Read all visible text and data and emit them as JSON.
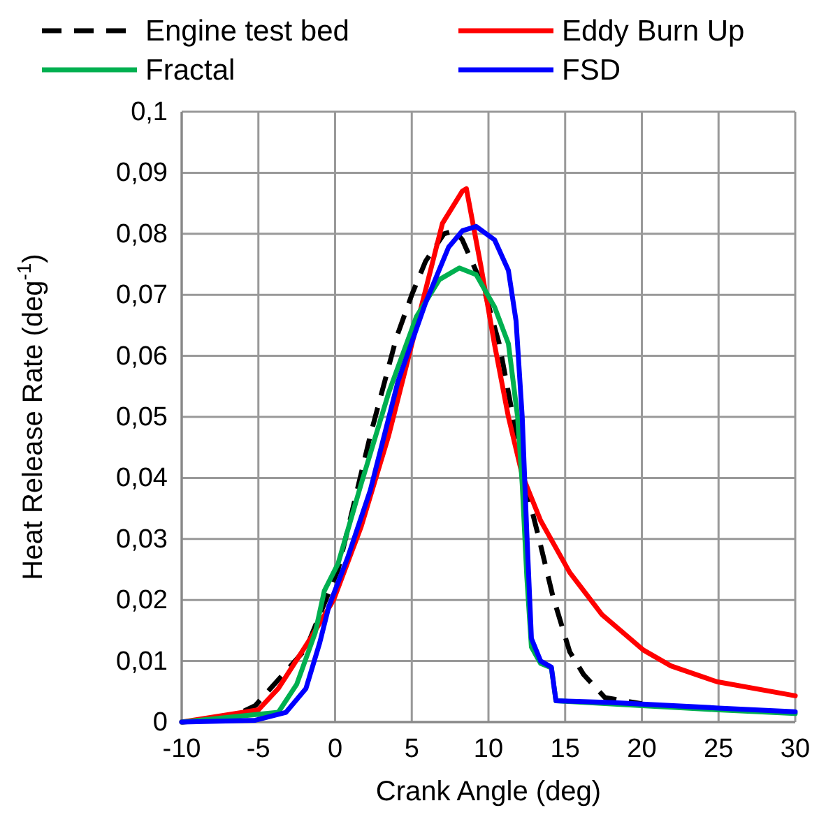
{
  "chart_data": {
    "type": "line",
    "xlabel": "Crank Angle (deg)",
    "ylabel": "Heat Release Rate (deg$^{-1}$)",
    "xlim": [
      -10,
      30
    ],
    "xticks": [
      -10,
      -5,
      0,
      5,
      10,
      15,
      20,
      25,
      30
    ],
    "ylim": [
      0,
      0.1
    ],
    "yticks": [
      {
        "value": 0,
        "label": "0"
      },
      {
        "value": 0.01,
        "label": "0,01"
      },
      {
        "value": 0.02,
        "label": "0,02"
      },
      {
        "value": 0.03,
        "label": "0,03"
      },
      {
        "value": 0.04,
        "label": "0,04"
      },
      {
        "value": 0.05,
        "label": "0,05"
      },
      {
        "value": 0.06,
        "label": "0,06"
      },
      {
        "value": 0.07,
        "label": "0,07"
      },
      {
        "value": 0.08,
        "label": "0,08"
      },
      {
        "value": 0.09,
        "label": "0,09"
      },
      {
        "value": 0.1,
        "label": "0,1"
      }
    ],
    "grid": true,
    "legend": "top",
    "marker": "none",
    "series": [
      {
        "name": "Engine test bed",
        "color": "#000000",
        "line_style": "dashed",
        "x": [
          -10,
          -7,
          -5.2,
          -1.9,
          0.2,
          2.3,
          4.0,
          5.0,
          5.9,
          7.1,
          7.8,
          8.3,
          9.7,
          10.7,
          11.6,
          12.4,
          13.3,
          14.2,
          15.3,
          16.2,
          17.6,
          20
        ],
        "values": [
          0,
          0.0005,
          0.0027,
          0.012,
          0.025,
          0.047,
          0.063,
          0.07,
          0.0755,
          0.08,
          0.0805,
          0.079,
          0.071,
          0.062,
          0.05,
          0.039,
          0.03,
          0.0206,
          0.0115,
          0.0078,
          0.004,
          0.003
        ]
      },
      {
        "name": "Eddy Burn Up",
        "color": "#ff0000",
        "line_style": "solid",
        "x": [
          -10,
          -5,
          -3.7,
          -1.6,
          -0.1,
          1.7,
          3.5,
          7.0,
          8.3,
          8.56,
          9.5,
          10.4,
          11.3,
          12.2,
          13.4,
          15.3,
          17.4,
          20.1,
          21.9,
          24.9,
          30
        ],
        "values": [
          0,
          0.002,
          0.0055,
          0.0137,
          0.02,
          0.032,
          0.047,
          0.0817,
          0.087,
          0.0874,
          0.0748,
          0.0618,
          0.05,
          0.0405,
          0.033,
          0.0245,
          0.0176,
          0.0118,
          0.0092,
          0.0066,
          0.0043
        ]
      },
      {
        "name": "Fractal",
        "color": "#00b050",
        "line_style": "solid",
        "x": [
          -10,
          -3.7,
          -2.5,
          -1.3,
          -0.7,
          0.2,
          1.7,
          3.5,
          5.3,
          6.8,
          8.1,
          9.2,
          10.4,
          11.3,
          11.9,
          12.2,
          12.5,
          12.8,
          13.4,
          14.1,
          14.4,
          20,
          25,
          30
        ],
        "values": [
          0,
          0.0016,
          0.0062,
          0.0146,
          0.0215,
          0.026,
          0.039,
          0.054,
          0.0664,
          0.0725,
          0.0744,
          0.0733,
          0.068,
          0.062,
          0.05,
          0.039,
          0.0238,
          0.0123,
          0.0096,
          0.0089,
          0.0035,
          0.0027,
          0.002,
          0.0014
        ]
      },
      {
        "name": "FSD",
        "color": "#0000ff",
        "line_style": "solid",
        "x": [
          -10,
          -5.2,
          -3.2,
          -1.9,
          -1.0,
          -0.4,
          0.8,
          2.3,
          4.1,
          5.9,
          7.4,
          8.3,
          9.2,
          10.4,
          11.3,
          11.8,
          12.2,
          12.5,
          12.8,
          13.4,
          14.1,
          14.4,
          18,
          25,
          30
        ],
        "values": [
          0,
          0.0003,
          0.0016,
          0.0055,
          0.013,
          0.019,
          0.0268,
          0.038,
          0.0558,
          0.0687,
          0.0778,
          0.0805,
          0.0812,
          0.079,
          0.074,
          0.0657,
          0.05,
          0.031,
          0.0137,
          0.01,
          0.009,
          0.0035,
          0.0032,
          0.0023,
          0.0017
        ]
      }
    ]
  }
}
